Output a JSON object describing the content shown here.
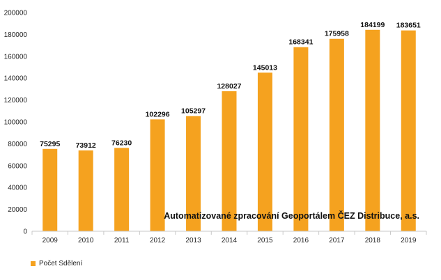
{
  "chart_data": {
    "type": "bar",
    "categories": [
      "2009",
      "2010",
      "2011",
      "2012",
      "2013",
      "2014",
      "2015",
      "2016",
      "2017",
      "2018",
      "2019"
    ],
    "series": [
      {
        "name": "Počet Sdělení",
        "values": [
          75295,
          73912,
          76230,
          102296,
          105297,
          128027,
          145013,
          168341,
          175958,
          184199,
          183651
        ],
        "color": "#f5a21f"
      }
    ],
    "data_labels": [
      "75295",
      "73912",
      "76230",
      "102296",
      "105297",
      "128027",
      "145013",
      "168341",
      "175958",
      "184199",
      "183651"
    ],
    "ylim": [
      0,
      200000
    ],
    "yticks": [
      0,
      20000,
      40000,
      60000,
      80000,
      100000,
      120000,
      140000,
      160000,
      180000,
      200000
    ],
    "ytick_labels": [
      "0",
      "20000",
      "40000",
      "60000",
      "80000",
      "100000",
      "120000",
      "140000",
      "160000",
      "180000",
      "200000"
    ],
    "annotation": "Automatizované zpracování Geoportálem ČEZ Distribuce, a.s.",
    "grid": false,
    "legend_position": "bottom-left",
    "axis_color": "#c8c8c8"
  }
}
